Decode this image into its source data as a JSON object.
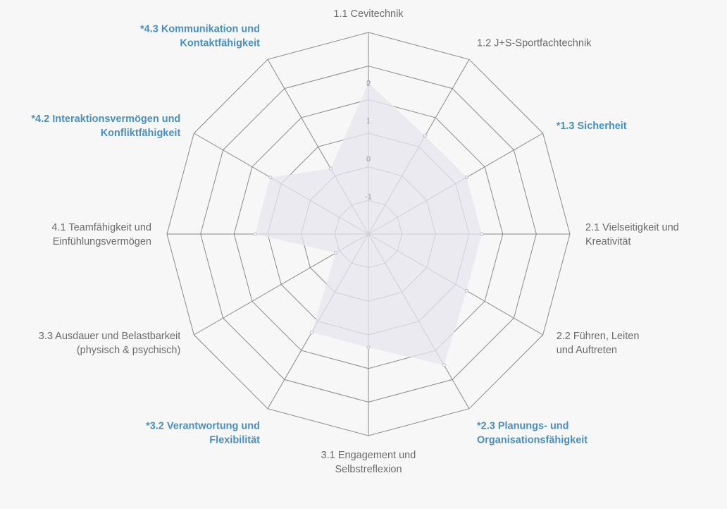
{
  "chart_data": {
    "type": "radar",
    "title": "",
    "rlim": [
      -2,
      2
    ],
    "rticks": [
      "-1",
      "0",
      "1",
      "2"
    ],
    "grid": true,
    "colors": {
      "grid": "#8a8a8a",
      "fill": "#e6e6ee",
      "highlight_label": "#4a8fc0",
      "label": "#6b6b6b"
    },
    "axes": [
      {
        "lines": [
          "1.1 Cevitechnik"
        ],
        "highlight": false
      },
      {
        "lines": [
          "1.2 J+S-Sportfachtechnik"
        ],
        "highlight": false
      },
      {
        "lines": [
          "*1.3 Sicherheit"
        ],
        "highlight": true
      },
      {
        "lines": [
          "2.1 Vielseitigkeit und",
          "Kreativität"
        ],
        "highlight": false
      },
      {
        "lines": [
          "2.2 Führen, Leiten",
          "und Auftreten"
        ],
        "highlight": false
      },
      {
        "lines": [
          "*2.3 Planungs- und",
          "Organisationsfähigkeit"
        ],
        "highlight": true
      },
      {
        "lines": [
          "3.1 Engagement und",
          "Selbstreflexion"
        ],
        "highlight": false
      },
      {
        "lines": [
          "*3.2 Verantwortung und",
          "Flexibilität"
        ],
        "highlight": true
      },
      {
        "lines": [
          "3.3 Ausdauer und Belastbarkeit",
          "(physisch & psychisch)"
        ],
        "highlight": false
      },
      {
        "lines": [
          "4.1 Teamfähigkeit und",
          "Einfühlungsvermögen"
        ],
        "highlight": false
      },
      {
        "lines": [
          "*4.2 Interaktionsvermögen und",
          "Konfliktfähigkeit"
        ],
        "highlight": true
      },
      {
        "lines": [
          "*4.3 Kommunikation und",
          "Kontaktfähigkeit"
        ],
        "highlight": true
      }
    ],
    "series": [
      {
        "values": [
          2,
          1,
          1,
          1,
          1,
          2,
          1,
          1,
          -1,
          1,
          1,
          0
        ]
      }
    ]
  }
}
